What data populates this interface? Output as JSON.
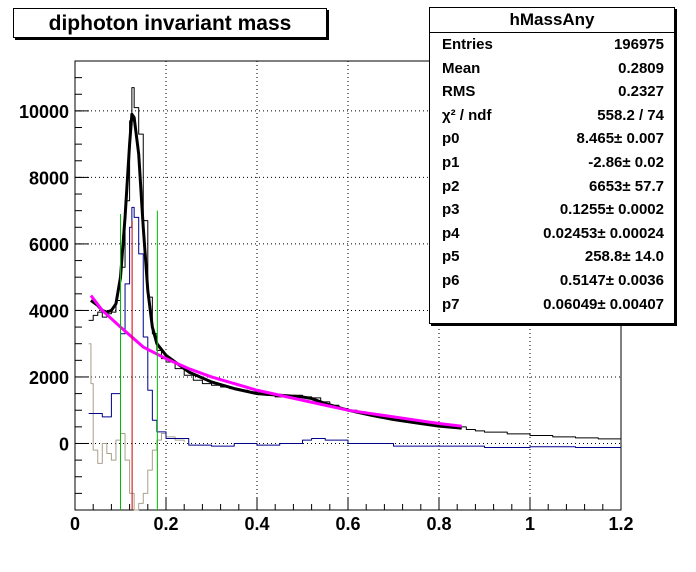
{
  "title": "diphoton invariant mass",
  "stats": {
    "name": "hMassAny",
    "rows": [
      {
        "key": "Entries",
        "value": "196975"
      },
      {
        "key": "Mean",
        "value": "0.2809"
      },
      {
        "key": "RMS",
        "value": "0.2327"
      },
      {
        "key": "χ² / ndf",
        "value": "558.2 / 74"
      },
      {
        "key": "p0",
        "value": "8.465± 0.007"
      },
      {
        "key": "p1",
        "value": "-2.86± 0.02"
      },
      {
        "key": "p2",
        "value": "6653± 57.7"
      },
      {
        "key": "p3",
        "value": "0.1255± 0.0002"
      },
      {
        "key": "p4",
        "value": "0.02453± 0.00024"
      },
      {
        "key": "p5",
        "value": "258.8± 14.0"
      },
      {
        "key": "p6",
        "value": "0.5147± 0.0036"
      },
      {
        "key": "p7",
        "value": "0.06049± 0.00407"
      }
    ]
  },
  "chart_data": {
    "type": "line",
    "title": "diphoton invariant mass",
    "xlim": [
      0,
      1.2
    ],
    "ylim": [
      -2000,
      11500
    ],
    "xticks": [
      "0",
      "0.2",
      "0.4",
      "0.6",
      "0.8",
      "1",
      "1.2"
    ],
    "yticks": [
      "0",
      "2000",
      "4000",
      "6000",
      "8000",
      "10000"
    ],
    "grid": true,
    "colors": {
      "data": "#000000",
      "fit": "#000000",
      "background": "#ff00ff",
      "signal": "#00008b",
      "residual": "#aaa08a",
      "peak_line": "#cc0000",
      "window_line": "#00bb00"
    },
    "series": [
      {
        "role": "data",
        "points": [
          [
            0.03,
            3700
          ],
          [
            0.04,
            3850
          ],
          [
            0.05,
            3950
          ],
          [
            0.06,
            3800
          ],
          [
            0.07,
            3900
          ],
          [
            0.08,
            3950
          ],
          [
            0.09,
            4300
          ],
          [
            0.1,
            5300
          ],
          [
            0.11,
            7300
          ],
          [
            0.12,
            9700
          ],
          [
            0.125,
            10700
          ],
          [
            0.13,
            10100
          ],
          [
            0.14,
            9300
          ],
          [
            0.15,
            6700
          ],
          [
            0.16,
            4400
          ],
          [
            0.17,
            3300
          ],
          [
            0.18,
            2800
          ],
          [
            0.19,
            2550
          ],
          [
            0.2,
            2450
          ],
          [
            0.22,
            2250
          ],
          [
            0.24,
            2050
          ],
          [
            0.26,
            1900
          ],
          [
            0.28,
            1800
          ],
          [
            0.3,
            1750
          ],
          [
            0.32,
            1700
          ],
          [
            0.34,
            1650
          ],
          [
            0.36,
            1600
          ],
          [
            0.38,
            1550
          ],
          [
            0.4,
            1520
          ],
          [
            0.42,
            1450
          ],
          [
            0.44,
            1400
          ],
          [
            0.46,
            1420
          ],
          [
            0.48,
            1450
          ],
          [
            0.5,
            1400
          ],
          [
            0.52,
            1370
          ],
          [
            0.54,
            1250
          ],
          [
            0.56,
            1150
          ],
          [
            0.58,
            1050
          ],
          [
            0.6,
            1000
          ],
          [
            0.62,
            950
          ],
          [
            0.64,
            900
          ],
          [
            0.66,
            850
          ],
          [
            0.68,
            800
          ],
          [
            0.7,
            760
          ],
          [
            0.72,
            720
          ],
          [
            0.74,
            680
          ],
          [
            0.76,
            640
          ],
          [
            0.78,
            600
          ],
          [
            0.8,
            560
          ],
          [
            0.82,
            520
          ],
          [
            0.84,
            500
          ],
          [
            0.86,
            420
          ],
          [
            0.88,
            380
          ],
          [
            0.9,
            340
          ],
          [
            0.95,
            290
          ],
          [
            1.0,
            240
          ],
          [
            1.05,
            200
          ],
          [
            1.1,
            170
          ],
          [
            1.15,
            140
          ],
          [
            1.2,
            100
          ]
        ]
      },
      {
        "role": "fit",
        "points": [
          [
            0.035,
            4300
          ],
          [
            0.05,
            4150
          ],
          [
            0.06,
            4000
          ],
          [
            0.07,
            3950
          ],
          [
            0.08,
            4000
          ],
          [
            0.09,
            4200
          ],
          [
            0.1,
            5000
          ],
          [
            0.11,
            6800
          ],
          [
            0.12,
            9000
          ],
          [
            0.125,
            9900
          ],
          [
            0.13,
            9800
          ],
          [
            0.14,
            8700
          ],
          [
            0.15,
            6500
          ],
          [
            0.16,
            4600
          ],
          [
            0.17,
            3500
          ],
          [
            0.18,
            3000
          ],
          [
            0.2,
            2650
          ],
          [
            0.25,
            2150
          ],
          [
            0.3,
            1850
          ],
          [
            0.35,
            1650
          ],
          [
            0.4,
            1500
          ],
          [
            0.45,
            1450
          ],
          [
            0.5,
            1400
          ],
          [
            0.52,
            1350
          ],
          [
            0.55,
            1200
          ],
          [
            0.6,
            1000
          ],
          [
            0.65,
            850
          ],
          [
            0.7,
            720
          ],
          [
            0.75,
            620
          ],
          [
            0.8,
            520
          ],
          [
            0.85,
            460
          ]
        ]
      },
      {
        "role": "background",
        "points": [
          [
            0.035,
            4450
          ],
          [
            0.06,
            4000
          ],
          [
            0.1,
            3500
          ],
          [
            0.15,
            2900
          ],
          [
            0.2,
            2550
          ],
          [
            0.25,
            2250
          ],
          [
            0.3,
            2000
          ],
          [
            0.35,
            1800
          ],
          [
            0.4,
            1600
          ],
          [
            0.45,
            1450
          ],
          [
            0.5,
            1300
          ],
          [
            0.55,
            1150
          ],
          [
            0.6,
            1000
          ],
          [
            0.65,
            900
          ],
          [
            0.7,
            800
          ],
          [
            0.75,
            700
          ],
          [
            0.8,
            600
          ],
          [
            0.85,
            520
          ]
        ]
      },
      {
        "role": "signal",
        "points": [
          [
            0.03,
            900
          ],
          [
            0.06,
            800
          ],
          [
            0.08,
            1500
          ],
          [
            0.1,
            3300
          ],
          [
            0.11,
            4800
          ],
          [
            0.12,
            6500
          ],
          [
            0.125,
            7100
          ],
          [
            0.13,
            6800
          ],
          [
            0.14,
            5700
          ],
          [
            0.15,
            3200
          ],
          [
            0.16,
            1600
          ],
          [
            0.17,
            700
          ],
          [
            0.18,
            350
          ],
          [
            0.2,
            150
          ],
          [
            0.25,
            -50
          ],
          [
            0.3,
            -80
          ],
          [
            0.35,
            0
          ],
          [
            0.4,
            -50
          ],
          [
            0.45,
            0
          ],
          [
            0.5,
            100
          ],
          [
            0.52,
            150
          ],
          [
            0.55,
            100
          ],
          [
            0.6,
            0
          ],
          [
            0.7,
            -80
          ],
          [
            0.8,
            -80
          ],
          [
            0.9,
            -120
          ],
          [
            1.0,
            -100
          ],
          [
            1.1,
            -120
          ],
          [
            1.2,
            -100
          ]
        ]
      },
      {
        "role": "residual",
        "points": [
          [
            0.03,
            3000
          ],
          [
            0.035,
            1800
          ],
          [
            0.04,
            -200
          ],
          [
            0.05,
            -600
          ],
          [
            0.06,
            0
          ],
          [
            0.07,
            -300
          ],
          [
            0.08,
            -500
          ],
          [
            0.09,
            100
          ],
          [
            0.1,
            300
          ],
          [
            0.11,
            -500
          ],
          [
            0.12,
            -1500
          ],
          [
            0.13,
            -2000
          ],
          [
            0.14,
            -1800
          ],
          [
            0.15,
            -1500
          ],
          [
            0.16,
            -800
          ],
          [
            0.17,
            -200
          ],
          [
            0.18,
            100
          ],
          [
            0.19,
            300
          ],
          [
            0.2,
            200
          ],
          [
            0.22,
            100
          ],
          [
            0.24,
            50
          ]
        ]
      }
    ],
    "markers": [
      {
        "role": "peak",
        "x": 0.1255,
        "y_top": 6700
      },
      {
        "role": "window_low",
        "x": 0.1,
        "y_top": 6900
      },
      {
        "role": "window_high",
        "x": 0.181,
        "y_top": 7000
      }
    ]
  }
}
